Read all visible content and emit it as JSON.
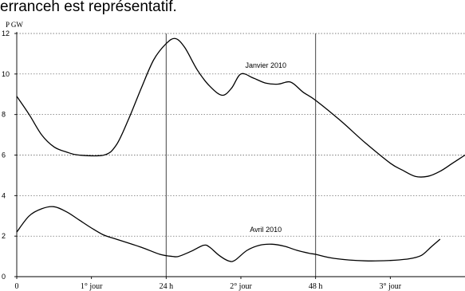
{
  "header": {
    "text": "erranceh est représentatif."
  },
  "chart_data": {
    "type": "line",
    "ylabel": "P GW",
    "ylim": [
      0,
      12
    ],
    "y_ticks": [
      0,
      2,
      4,
      6,
      8,
      10,
      12
    ],
    "xlim": [
      0,
      72
    ],
    "x_ticks": [
      {
        "x": 0,
        "label": "0"
      },
      {
        "x": 12,
        "label": "1° jour"
      },
      {
        "x": 24,
        "label": "24 h"
      },
      {
        "x": 36,
        "label": "2° jour"
      },
      {
        "x": 48,
        "label": "48 h"
      },
      {
        "x": 60,
        "label": "3° jour"
      }
    ],
    "vertical_lines": [
      24,
      48
    ],
    "grid": "horizontal dotted",
    "series": [
      {
        "name": "Janvier 2010",
        "color": "#000000",
        "points": [
          [
            0,
            8.9
          ],
          [
            2,
            8.0
          ],
          [
            4,
            7.0
          ],
          [
            6,
            6.4
          ],
          [
            8,
            6.15
          ],
          [
            10,
            6.0
          ],
          [
            14,
            6.0
          ],
          [
            16,
            6.5
          ],
          [
            18,
            7.8
          ],
          [
            20,
            9.3
          ],
          [
            22,
            10.7
          ],
          [
            24,
            11.5
          ],
          [
            25.5,
            11.75
          ],
          [
            27,
            11.3
          ],
          [
            29,
            10.2
          ],
          [
            31,
            9.4
          ],
          [
            33,
            8.95
          ],
          [
            34.5,
            9.3
          ],
          [
            36,
            10.0
          ],
          [
            38,
            9.8
          ],
          [
            40,
            9.55
          ],
          [
            42,
            9.5
          ],
          [
            44,
            9.6
          ],
          [
            46,
            9.1
          ],
          [
            48,
            8.7
          ],
          [
            52,
            7.7
          ],
          [
            56,
            6.6
          ],
          [
            60,
            5.6
          ],
          [
            62,
            5.25
          ],
          [
            64,
            4.95
          ],
          [
            66,
            4.95
          ],
          [
            68,
            5.2
          ],
          [
            70,
            5.6
          ],
          [
            72,
            6.0
          ]
        ]
      },
      {
        "name": "Avril 2010",
        "color": "#000000",
        "points": [
          [
            0,
            2.2
          ],
          [
            2,
            3.0
          ],
          [
            4,
            3.35
          ],
          [
            6,
            3.45
          ],
          [
            8,
            3.2
          ],
          [
            10,
            2.8
          ],
          [
            12,
            2.4
          ],
          [
            14,
            2.05
          ],
          [
            16,
            1.85
          ],
          [
            20,
            1.45
          ],
          [
            23,
            1.1
          ],
          [
            25,
            1.0
          ],
          [
            26,
            1.0
          ],
          [
            28,
            1.25
          ],
          [
            30,
            1.55
          ],
          [
            31,
            1.45
          ],
          [
            32.5,
            1.05
          ],
          [
            34,
            0.78
          ],
          [
            35,
            0.8
          ],
          [
            37,
            1.3
          ],
          [
            39,
            1.55
          ],
          [
            41,
            1.6
          ],
          [
            43,
            1.5
          ],
          [
            45,
            1.3
          ],
          [
            47,
            1.15
          ],
          [
            48,
            1.1
          ],
          [
            51,
            0.9
          ],
          [
            56,
            0.78
          ],
          [
            60,
            0.8
          ],
          [
            63,
            0.88
          ],
          [
            65,
            1.05
          ],
          [
            66.5,
            1.45
          ],
          [
            68,
            1.85
          ]
        ]
      }
    ]
  }
}
